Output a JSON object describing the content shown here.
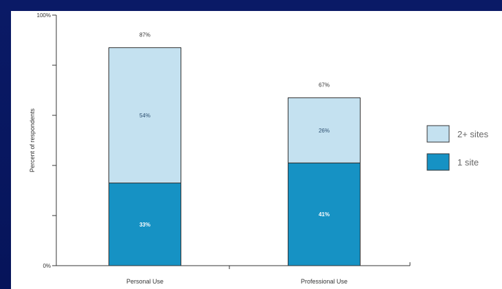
{
  "chart_data": {
    "type": "bar",
    "stacked": true,
    "categories": [
      "Personal Use",
      "Professional Use"
    ],
    "series": [
      {
        "name": "1 site",
        "values": [
          33,
          41
        ],
        "labels": [
          "33%",
          "41%"
        ],
        "color": "#1692c4"
      },
      {
        "name": "2+ sites",
        "values": [
          54,
          26
        ],
        "labels": [
          "54%",
          "26%"
        ],
        "color": "#c4e1f0"
      }
    ],
    "totals": [
      87,
      67
    ],
    "total_labels": [
      "87%",
      "67%"
    ],
    "ylabel": "Percent of respondents",
    "ylim": [
      0,
      100
    ],
    "yticks": [
      "0%",
      "100%"
    ],
    "legend_position": "right",
    "grid": false
  }
}
